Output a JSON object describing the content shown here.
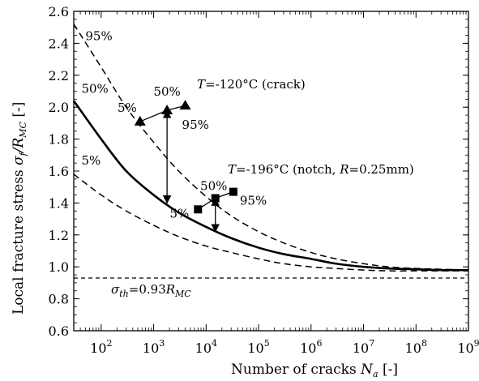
{
  "chart_data": {
    "type": "line",
    "xscale": "log",
    "xlim": [
      30,
      1000000000
    ],
    "ylim": [
      0.6,
      2.6
    ],
    "grid": false,
    "xlabel": "Number of cracks",
    "xlabel_symbol": "N",
    "xlabel_sub": "a",
    "xlabel_unit": "[-]",
    "ylabel": "Local fracture stress",
    "ylabel_symbol": "σ",
    "ylabel_sub1": "f",
    "ylabel_slash": "/R",
    "ylabel_sub2": "MC",
    "ylabel_unit": "[-]",
    "x_ticks": [
      {
        "value": 100,
        "base": "10",
        "exp": "2"
      },
      {
        "value": 1000,
        "base": "10",
        "exp": "3"
      },
      {
        "value": 10000,
        "base": "10",
        "exp": "4"
      },
      {
        "value": 100000,
        "base": "10",
        "exp": "5"
      },
      {
        "value": 1000000,
        "base": "10",
        "exp": "6"
      },
      {
        "value": 10000000,
        "base": "10",
        "exp": "7"
      },
      {
        "value": 100000000,
        "base": "10",
        "exp": "8"
      },
      {
        "value": 1000000000,
        "base": "10",
        "exp": "9"
      }
    ],
    "y_ticks": [
      "0.6",
      "0.8",
      "1.0",
      "1.2",
      "1.4",
      "1.6",
      "1.8",
      "2.0",
      "2.2",
      "2.4",
      "2.6"
    ],
    "series": [
      {
        "name": "95%",
        "style": "dashed",
        "x": [
          30,
          100,
          300,
          1000,
          3000,
          10000,
          30000,
          100000,
          300000,
          1000000,
          3000000,
          10000000,
          30000000,
          100000000,
          300000000,
          1000000000
        ],
        "y": [
          2.52,
          2.25,
          2.0,
          1.78,
          1.6,
          1.44,
          1.32,
          1.22,
          1.15,
          1.09,
          1.05,
          1.02,
          1.0,
          0.99,
          0.985,
          0.98
        ]
      },
      {
        "name": "50%",
        "style": "solid",
        "x": [
          30,
          100,
          300,
          1000,
          3000,
          10000,
          30000,
          100000,
          300000,
          1000000,
          3000000,
          10000000,
          30000000,
          100000000,
          300000000,
          1000000000
        ],
        "y": [
          2.04,
          1.8,
          1.6,
          1.45,
          1.34,
          1.25,
          1.18,
          1.12,
          1.08,
          1.05,
          1.02,
          1.0,
          0.99,
          0.985,
          0.98,
          0.98
        ]
      },
      {
        "name": "5%",
        "style": "dashed",
        "x": [
          30,
          100,
          300,
          1000,
          3000,
          10000,
          30000,
          100000,
          300000,
          1000000,
          3000000,
          10000000,
          30000000,
          100000000,
          300000000,
          1000000000
        ],
        "y": [
          1.58,
          1.45,
          1.35,
          1.26,
          1.19,
          1.13,
          1.09,
          1.05,
          1.02,
          1.0,
          0.99,
          0.98,
          0.975,
          0.975,
          0.975,
          0.975
        ]
      }
    ],
    "threshold": {
      "value": 0.93,
      "label_sym": "σ",
      "label_sub": "th",
      "label_eq": "=0.93",
      "label_R": "R",
      "label_R_sub": "MC"
    },
    "curve_labels": [
      {
        "text": "95%",
        "x": 50,
        "y": 2.42
      },
      {
        "text": "50%",
        "x": 42,
        "y": 2.09
      },
      {
        "text": "5%",
        "x": 42,
        "y": 1.64
      }
    ],
    "triangle_group": {
      "title_T": "T",
      "title_rest": "=-120°C  (crack)",
      "points": [
        {
          "label": "5%",
          "x": 550,
          "y": 1.91
        },
        {
          "label": "50%",
          "x": 1800,
          "y": 1.98
        },
        {
          "label": "95%",
          "x": 4000,
          "y": 2.01
        }
      ],
      "arrow": {
        "x": 1800,
        "from_y": 1.98,
        "to_y": 1.4
      }
    },
    "square_group": {
      "title_T": "T",
      "title_mid": "=-196°C (notch, ",
      "title_R": "R",
      "title_end": "=0.25mm)",
      "points": [
        {
          "label": "5%",
          "x": 7000,
          "y": 1.36
        },
        {
          "label": "50%",
          "x": 15000,
          "y": 1.43
        },
        {
          "label": "95%",
          "x": 33000,
          "y": 1.47
        }
      ],
      "arrow": {
        "x": 15000,
        "from_y": 1.43,
        "to_y": 1.22
      }
    }
  }
}
